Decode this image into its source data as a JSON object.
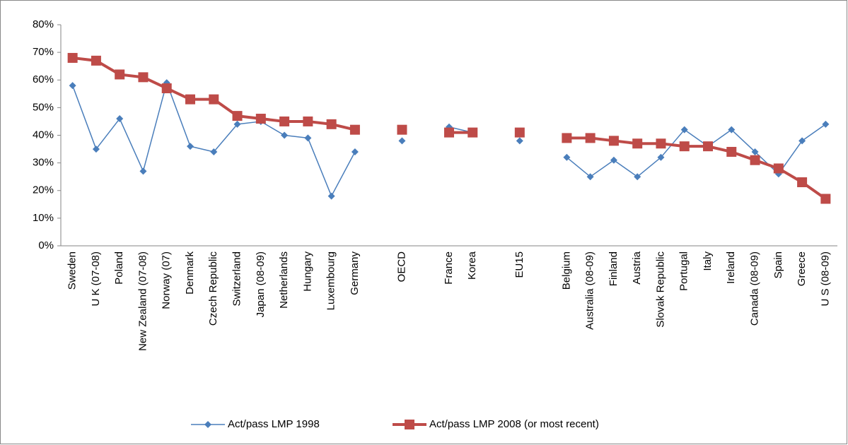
{
  "chart_data": {
    "type": "line",
    "categories": [
      "Sweden",
      "U K (07-08)",
      "Poland",
      "New Zealand (07-08)",
      "Norway (07)",
      "Denmark",
      "Czech Republic",
      "Switzerland",
      "Japan (08-09)",
      "Netherlands",
      "Hungary",
      "Luxembourg",
      "Germany",
      null,
      "OECD",
      null,
      "France",
      "Korea",
      null,
      "EU15",
      null,
      "Belgium",
      "Australia (08-09)",
      "Finland",
      "Austria",
      "Slovak Republic",
      "Portugal",
      "Italy",
      "Ireland",
      "Canada (08-09)",
      "Spain",
      "Greece",
      "U S (08-09)"
    ],
    "series": [
      {
        "name": "Act/pass LMP 1998",
        "color": "#4a7ebb",
        "marker": "diamond",
        "values": [
          58,
          35,
          46,
          27,
          59,
          36,
          34,
          44,
          45,
          40,
          39,
          18,
          34,
          null,
          38,
          null,
          43,
          41,
          null,
          38,
          null,
          32,
          25,
          31,
          25,
          32,
          42,
          36,
          42,
          34,
          26,
          38,
          44
        ]
      },
      {
        "name": "Act/pass LMP 2008 (or most recent)",
        "color": "#be4b48",
        "marker": "square",
        "values": [
          68,
          67,
          62,
          61,
          57,
          53,
          53,
          47,
          46,
          45,
          45,
          44,
          42,
          null,
          42,
          null,
          41,
          41,
          null,
          41,
          null,
          39,
          39,
          38,
          37,
          37,
          36,
          36,
          34,
          31,
          28,
          23,
          17
        ]
      }
    ],
    "ylim": [
      0,
      80
    ],
    "yticks": [
      {
        "value": 0,
        "label": "0%"
      },
      {
        "value": 10,
        "label": "10%"
      },
      {
        "value": 20,
        "label": "20%"
      },
      {
        "value": 30,
        "label": "30%"
      },
      {
        "value": 40,
        "label": "40%"
      },
      {
        "value": 50,
        "label": "50%"
      },
      {
        "value": 60,
        "label": "60%"
      },
      {
        "value": 70,
        "label": "70%"
      },
      {
        "value": 80,
        "label": "80%"
      }
    ],
    "grid": false,
    "legend": "bottom"
  }
}
